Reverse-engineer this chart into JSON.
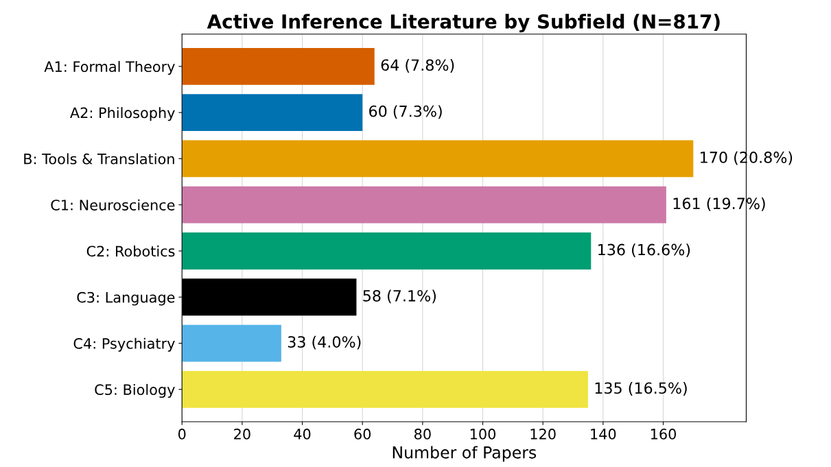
{
  "chart_data": {
    "type": "bar",
    "orientation": "horizontal",
    "title": "Active Inference Literature by Subfield (N=817)",
    "xlabel": "Number of Papers",
    "categories": [
      "A1: Formal Theory",
      "A2: Philosophy",
      "B: Tools & Translation",
      "C1: Neuroscience",
      "C2: Robotics",
      "C3: Language",
      "C4: Psychiatry",
      "C5: Biology"
    ],
    "values": [
      64,
      60,
      170,
      161,
      136,
      58,
      33,
      135
    ],
    "colors": [
      "#d55e00",
      "#0072b2",
      "#e69f00",
      "#cc79a7",
      "#009e73",
      "#000000",
      "#56b4e9",
      "#f0e442"
    ],
    "value_labels": [
      "64 (7.8%)",
      "60 (7.3%)",
      "170 (20.8%)",
      "161 (19.7%)",
      "136 (16.6%)",
      "58 (7.1%)",
      "33 (4.0%)",
      "135 (16.5%)"
    ],
    "xlim": [
      0,
      187.6
    ],
    "xticks": [
      0,
      20,
      40,
      60,
      80,
      100,
      120,
      140,
      160
    ],
    "grid": "x"
  }
}
